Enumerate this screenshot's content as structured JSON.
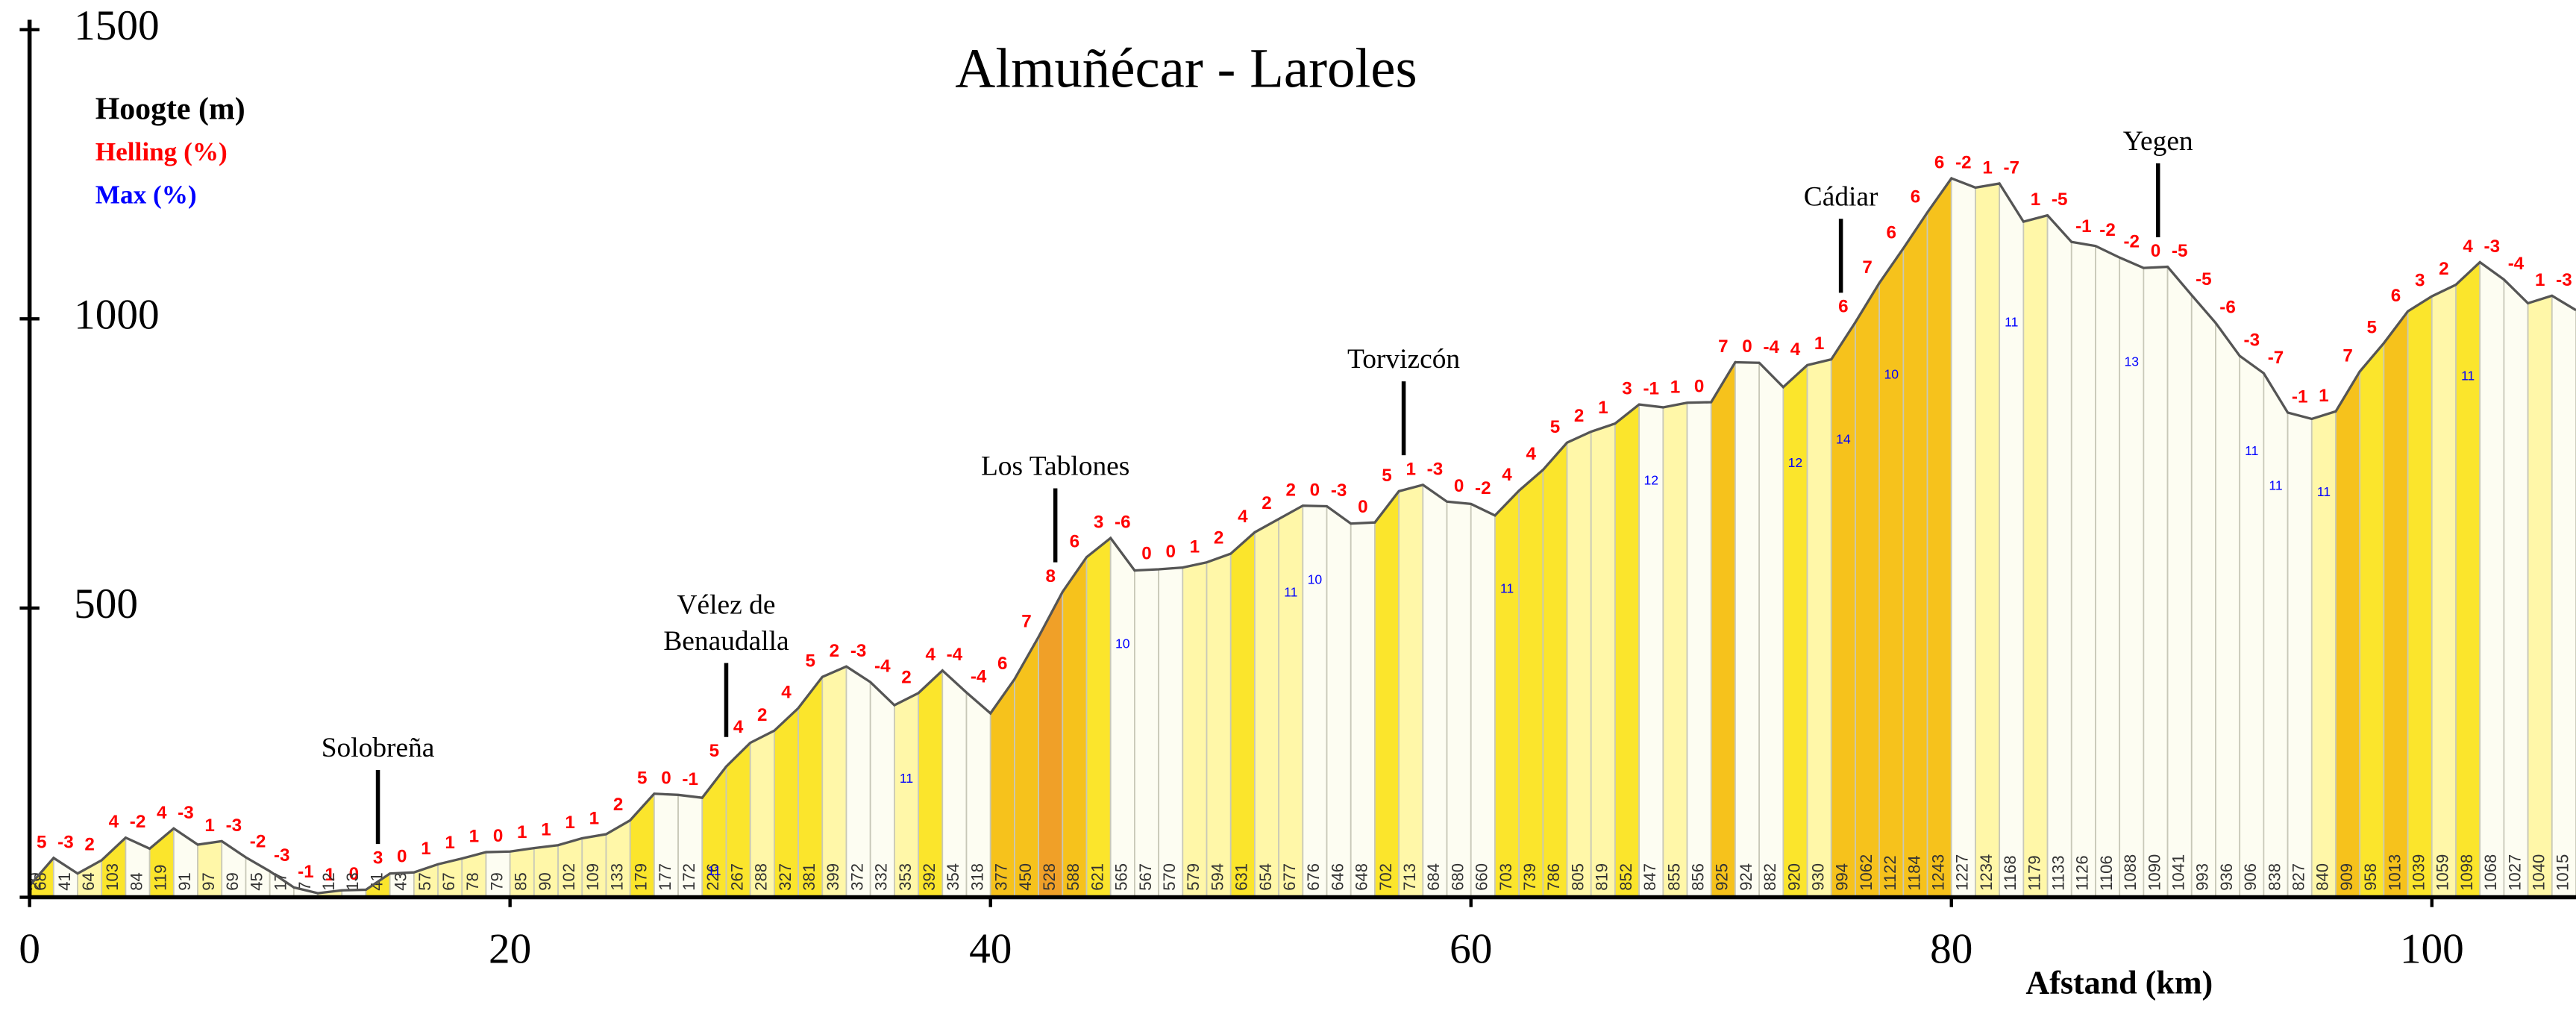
{
  "chart_data": {
    "type": "area",
    "title": "Almuñécar - Laroles",
    "legend": [
      "Hoogte (m)",
      "Helling (%)",
      "Max (%)"
    ],
    "legend_colors": [
      "#000000",
      "#ff0000",
      "#0000ff"
    ],
    "xlabel": "Afstand (km)",
    "x": [
      0,
      1,
      2,
      3,
      4,
      5,
      6,
      7,
      8,
      9,
      10,
      11,
      12,
      13,
      14,
      15,
      16,
      17,
      18,
      19,
      20,
      21,
      22,
      23,
      24,
      25,
      26,
      27,
      28,
      29,
      30,
      31,
      32,
      33,
      34,
      35,
      36,
      37,
      38,
      39,
      40,
      41,
      42,
      43,
      44,
      45,
      46,
      47,
      48,
      49,
      50,
      51,
      52,
      53,
      54,
      55,
      56,
      57,
      58,
      59,
      60,
      61,
      62,
      63,
      64,
      65,
      66,
      67,
      68,
      69,
      70,
      71,
      72,
      73,
      74,
      75,
      76,
      77,
      78,
      79,
      80,
      81,
      82,
      83,
      84,
      85,
      86,
      87,
      88,
      89,
      90,
      91,
      92,
      93,
      94,
      95,
      96,
      97,
      98,
      99,
      100,
      101,
      102,
      103,
      104,
      105,
      106
    ],
    "values": [
      20,
      68,
      41,
      64,
      103,
      84,
      119,
      91,
      97,
      69,
      45,
      17,
      7,
      12,
      13,
      41,
      43,
      57,
      67,
      78,
      79,
      85,
      90,
      102,
      109,
      133,
      179,
      177,
      172,
      226,
      267,
      288,
      327,
      381,
      399,
      372,
      332,
      353,
      392,
      354,
      318,
      377,
      450,
      528,
      588,
      621,
      565,
      567,
      570,
      579,
      594,
      631,
      654,
      677,
      676,
      646,
      648,
      702,
      713,
      684,
      680,
      660,
      703,
      739,
      786,
      805,
      819,
      852,
      847,
      855,
      856,
      925,
      924,
      882,
      920,
      930,
      994,
      1062,
      1122,
      1184,
      1243,
      1227,
      1234,
      1168,
      1179,
      1133,
      1126,
      1106,
      1088,
      1090,
      1041,
      993,
      936,
      906,
      838,
      827,
      840,
      909,
      958,
      1013,
      1039,
      1059,
      1098,
      1068,
      1027,
      1040,
      1015
    ],
    "gradients": [
      5,
      -3,
      2,
      4,
      -2,
      4,
      -3,
      1,
      -3,
      -2,
      -3,
      -1,
      1,
      0,
      3,
      0,
      1,
      1,
      1,
      0,
      1,
      1,
      1,
      1,
      2,
      5,
      0,
      -1,
      5,
      4,
      2,
      4,
      5,
      2,
      -3,
      -4,
      2,
      4,
      -4,
      -4,
      6,
      7,
      8,
      6,
      3,
      -6,
      0,
      0,
      1,
      2,
      4,
      2,
      2,
      0,
      -3,
      0,
      5,
      1,
      -3,
      0,
      -2,
      4,
      4,
      5,
      2,
      1,
      3,
      -1,
      1,
      0,
      7,
      0,
      -4,
      4,
      1,
      6,
      7,
      6,
      6,
      6,
      -2,
      1,
      -7,
      1,
      -5,
      -1,
      -2,
      -2,
      0,
      -5,
      -5,
      -6,
      -3,
      -7,
      -1,
      1,
      7,
      5,
      6,
      3,
      2,
      4,
      -3,
      -4,
      1,
      -3
    ],
    "max_grades": [
      {
        "x": 28.5,
        "value": 11
      },
      {
        "x": 36.5,
        "value": 11
      },
      {
        "x": 45.5,
        "value": 10
      },
      {
        "x": 52.5,
        "value": 11
      },
      {
        "x": 53.5,
        "value": 10
      },
      {
        "x": 61.5,
        "value": 11
      },
      {
        "x": 67.5,
        "value": 12
      },
      {
        "x": 73.5,
        "value": 12
      },
      {
        "x": 75.5,
        "value": 14
      },
      {
        "x": 77.5,
        "value": 10
      },
      {
        "x": 82.5,
        "value": 11
      },
      {
        "x": 87.5,
        "value": 13
      },
      {
        "x": 92.5,
        "value": 11
      },
      {
        "x": 93.5,
        "value": 11
      },
      {
        "x": 95.5,
        "value": 11
      },
      {
        "x": 101.5,
        "value": 11
      }
    ],
    "places": [
      {
        "x": 14.5,
        "label": "Solobreña"
      },
      {
        "x": 29,
        "label": "Vélez de Benaudalla"
      },
      {
        "x": 42.7,
        "label": "Los Tablones"
      },
      {
        "x": 57.2,
        "label": "Torvizcón"
      },
      {
        "x": 75.4,
        "label": "Cádiar"
      },
      {
        "x": 88.6,
        "label": "Yegen"
      }
    ],
    "xlim": [
      0,
      106
    ],
    "xticks": [
      0,
      20,
      40,
      60,
      80,
      100
    ],
    "ylim": [
      0,
      1500
    ],
    "yticks": [
      0,
      500,
      1000,
      1500
    ]
  }
}
